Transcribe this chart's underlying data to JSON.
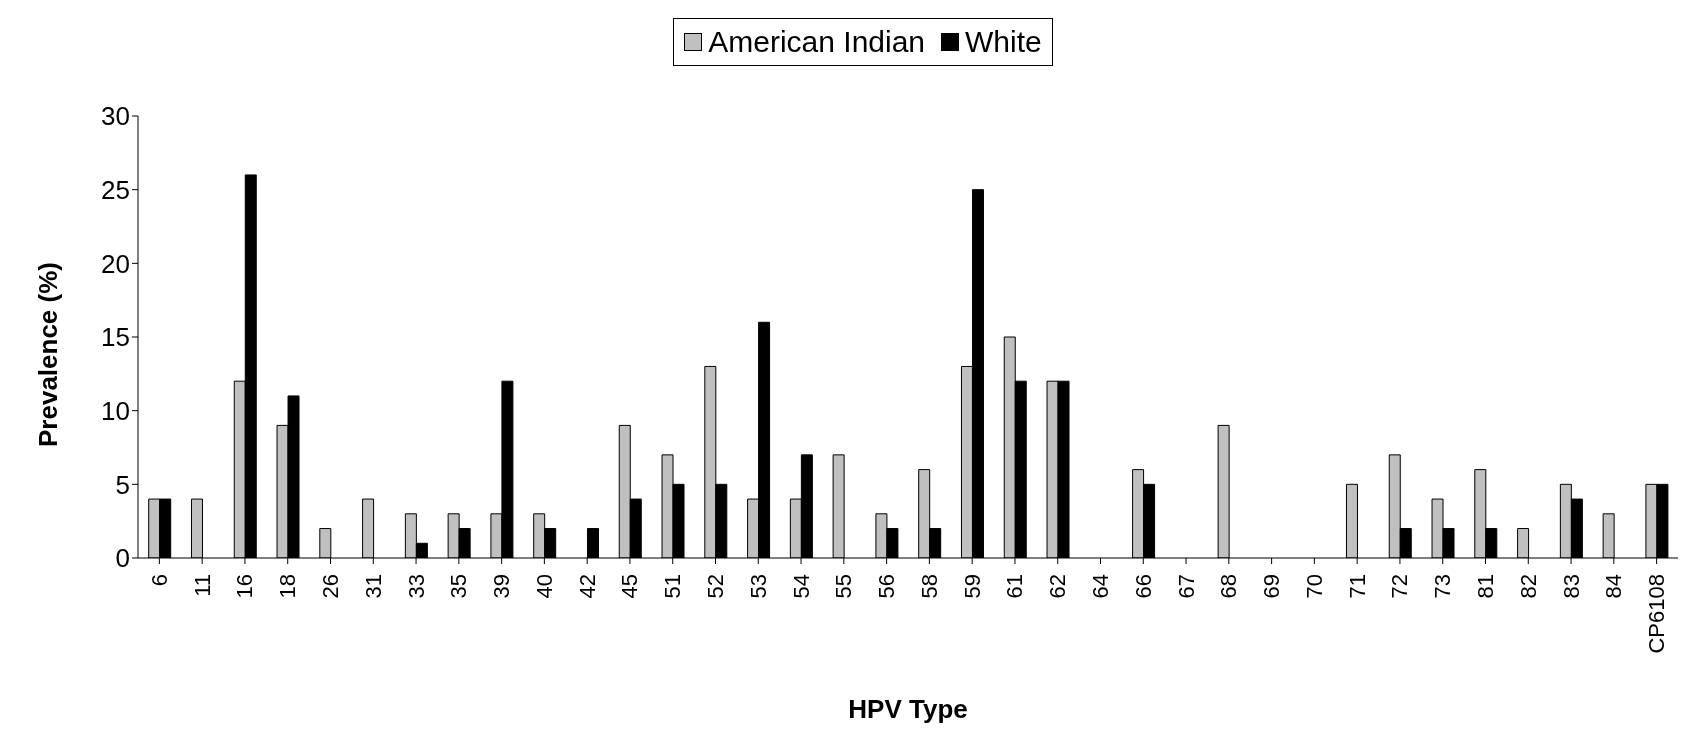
{
  "chart_data": {
    "type": "bar",
    "xlabel": "HPV Type",
    "ylabel": "Prevalence (%)",
    "categories": [
      "6",
      "11",
      "16",
      "18",
      "26",
      "31",
      "33",
      "35",
      "39",
      "40",
      "42",
      "45",
      "51",
      "52",
      "53",
      "54",
      "55",
      "56",
      "58",
      "59",
      "61",
      "62",
      "64",
      "66",
      "67",
      "68",
      "69",
      "70",
      "71",
      "72",
      "73",
      "81",
      "82",
      "83",
      "84",
      "CP6108"
    ],
    "series": [
      {
        "name": "American Indian",
        "color": "#c0c0c0",
        "values": [
          4,
          4,
          12,
          9,
          2,
          4,
          3,
          3,
          3,
          3,
          0,
          9,
          7,
          13,
          4,
          4,
          7,
          3,
          6,
          13,
          15,
          12,
          0,
          6,
          0,
          9,
          0,
          0,
          5,
          7,
          4,
          6,
          2,
          5,
          3,
          5
        ]
      },
      {
        "name": "White",
        "color": "#000000",
        "values": [
          4,
          0,
          26,
          11,
          0,
          0,
          1,
          2,
          12,
          2,
          2,
          4,
          5,
          5,
          16,
          7,
          0,
          2,
          2,
          25,
          12,
          12,
          0,
          5,
          0,
          0,
          0,
          0,
          0,
          2,
          2,
          2,
          0,
          4,
          0,
          5
        ]
      }
    ],
    "ylim": [
      0,
      30
    ],
    "yticks": [
      0,
      5,
      10,
      15,
      20,
      25,
      30
    ],
    "grid": false,
    "legend": "top"
  }
}
